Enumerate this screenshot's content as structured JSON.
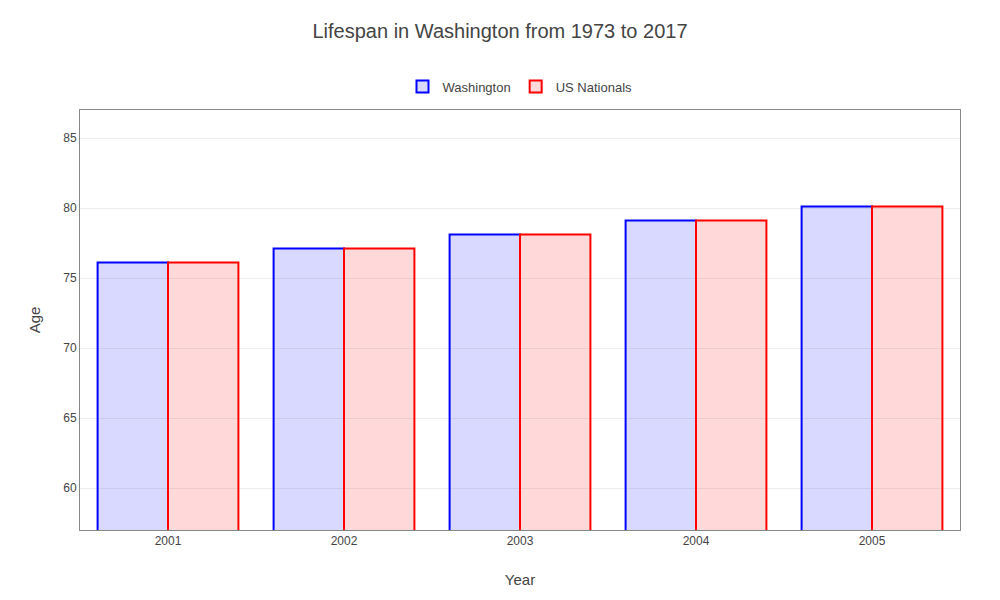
{
  "chart_data": {
    "type": "bar",
    "title": "Lifespan in Washington from 1973 to 2017",
    "x_label": "Year",
    "y_label": "Age",
    "categories": [
      "2001",
      "2002",
      "2003",
      "2004",
      "2005"
    ],
    "series": [
      {
        "name": "Washington",
        "color": "#0000ff",
        "values": [
          76.1,
          77.1,
          78.1,
          79.1,
          80.1
        ]
      },
      {
        "name": "US Nationals",
        "color": "#ff0000",
        "values": [
          76.1,
          77.1,
          78.1,
          79.1,
          80.1
        ]
      }
    ],
    "ylim": [
      57,
      87
    ],
    "yticks": [
      60,
      65,
      70,
      75,
      80,
      85
    ],
    "grid": true,
    "legend": "upper center"
  }
}
